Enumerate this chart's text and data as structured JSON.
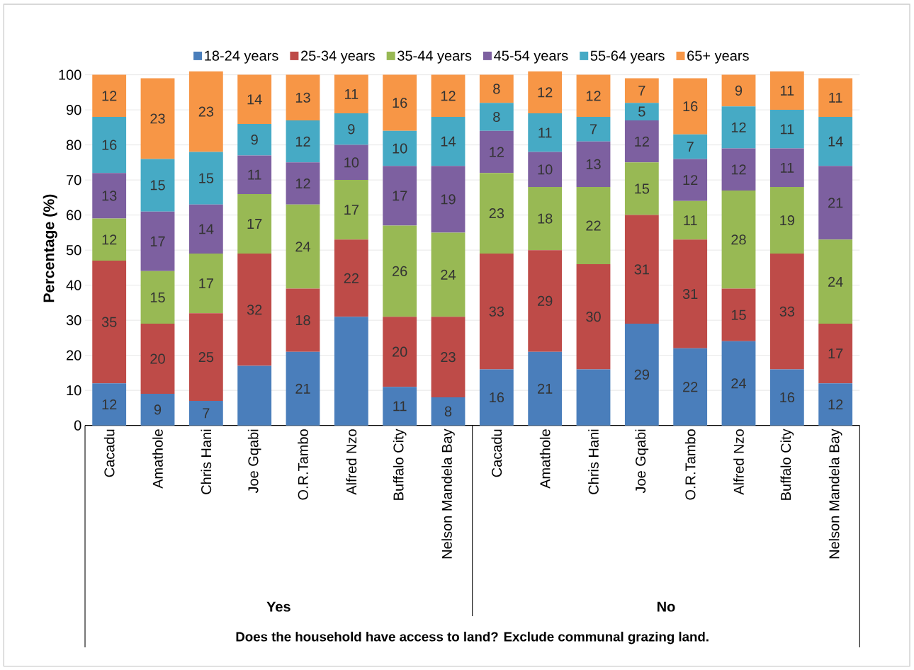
{
  "chart_data": {
    "type": "bar",
    "stacked": true,
    "ylabel": "Percentage (%)",
    "annotations": [
      "Yes",
      "No",
      "Does the household have access to land? Exclude communal grazing land."
    ],
    "categories": [
      "Cacadu",
      "Amathole",
      "Chris Hani",
      "Joe Gqabi",
      "O.R.Tambo",
      "Alfred Nzo",
      "Buffalo City",
      "Nelson Mandela Bay",
      "Cacadu",
      "Amathole",
      "Chris Hani",
      "Joe Gqabi",
      "O.R.Tambo",
      "Alfred Nzo",
      "Buffalo City",
      "Nelson Mandela Bay"
    ],
    "series": [
      {
        "name": "18-24 years",
        "color": "#4a7ebb",
        "values": [
          12,
          9,
          7,
          17,
          21,
          31,
          11,
          8,
          16,
          21,
          16,
          29,
          22,
          24,
          16,
          12
        ],
        "value_labels": [
          "12",
          "9",
          "7",
          null,
          "21",
          null,
          "11",
          "8",
          "16",
          "21",
          null,
          "29",
          "22",
          "24",
          "16",
          "12"
        ]
      },
      {
        "name": "25-34 years",
        "color": "#be4b48",
        "values": [
          35,
          20,
          25,
          32,
          18,
          22,
          20,
          23,
          33,
          29,
          30,
          31,
          31,
          15,
          33,
          17
        ],
        "value_labels": [
          "35",
          "20",
          "25",
          "32",
          "18",
          "22",
          "20",
          "23",
          "33",
          "29",
          "30",
          "31",
          "31",
          "15",
          "33",
          "17"
        ]
      },
      {
        "name": "35-44 years",
        "color": "#98b954",
        "values": [
          12,
          15,
          17,
          17,
          24,
          17,
          26,
          24,
          23,
          18,
          22,
          15,
          11,
          28,
          19,
          24
        ],
        "value_labels": [
          "12",
          "15",
          "17",
          "17",
          "24",
          "17",
          "26",
          "24",
          "23",
          "18",
          "22",
          "15",
          "11",
          "28",
          "19",
          "24"
        ]
      },
      {
        "name": "45-54 years",
        "color": "#7d60a0",
        "values": [
          13,
          17,
          14,
          11,
          12,
          10,
          17,
          19,
          12,
          10,
          13,
          12,
          12,
          12,
          11,
          21
        ],
        "value_labels": [
          "13",
          "17",
          "14",
          "11",
          "12",
          "10",
          "17",
          "19",
          "12",
          "10",
          "13",
          "12",
          "12",
          "12",
          "11",
          "21"
        ]
      },
      {
        "name": "55-64 years",
        "color": "#46aac5",
        "values": [
          16,
          15,
          15,
          9,
          12,
          9,
          10,
          14,
          8,
          11,
          7,
          5,
          7,
          12,
          11,
          14
        ],
        "value_labels": [
          "16",
          "15",
          "15",
          "9",
          "12",
          "9",
          "10",
          "14",
          "8",
          "11",
          "7",
          "5",
          "7",
          "12",
          "11",
          "14"
        ]
      },
      {
        "name": "65+ years",
        "color": "#f79646",
        "values": [
          12,
          23,
          23,
          14,
          13,
          11,
          16,
          12,
          8,
          12,
          12,
          7,
          16,
          9,
          11,
          11
        ],
        "value_labels": [
          "12",
          "23",
          "23",
          "14",
          "13",
          "11",
          "16",
          "12",
          "8",
          "12",
          "12",
          "7",
          "16",
          "9",
          "11",
          "11"
        ]
      }
    ],
    "ylim": [
      0,
      101
    ],
    "yticks": [
      0,
      10,
      20,
      30,
      40,
      50,
      60,
      70,
      80,
      90,
      100
    ],
    "grid": "y",
    "legend": "top"
  }
}
